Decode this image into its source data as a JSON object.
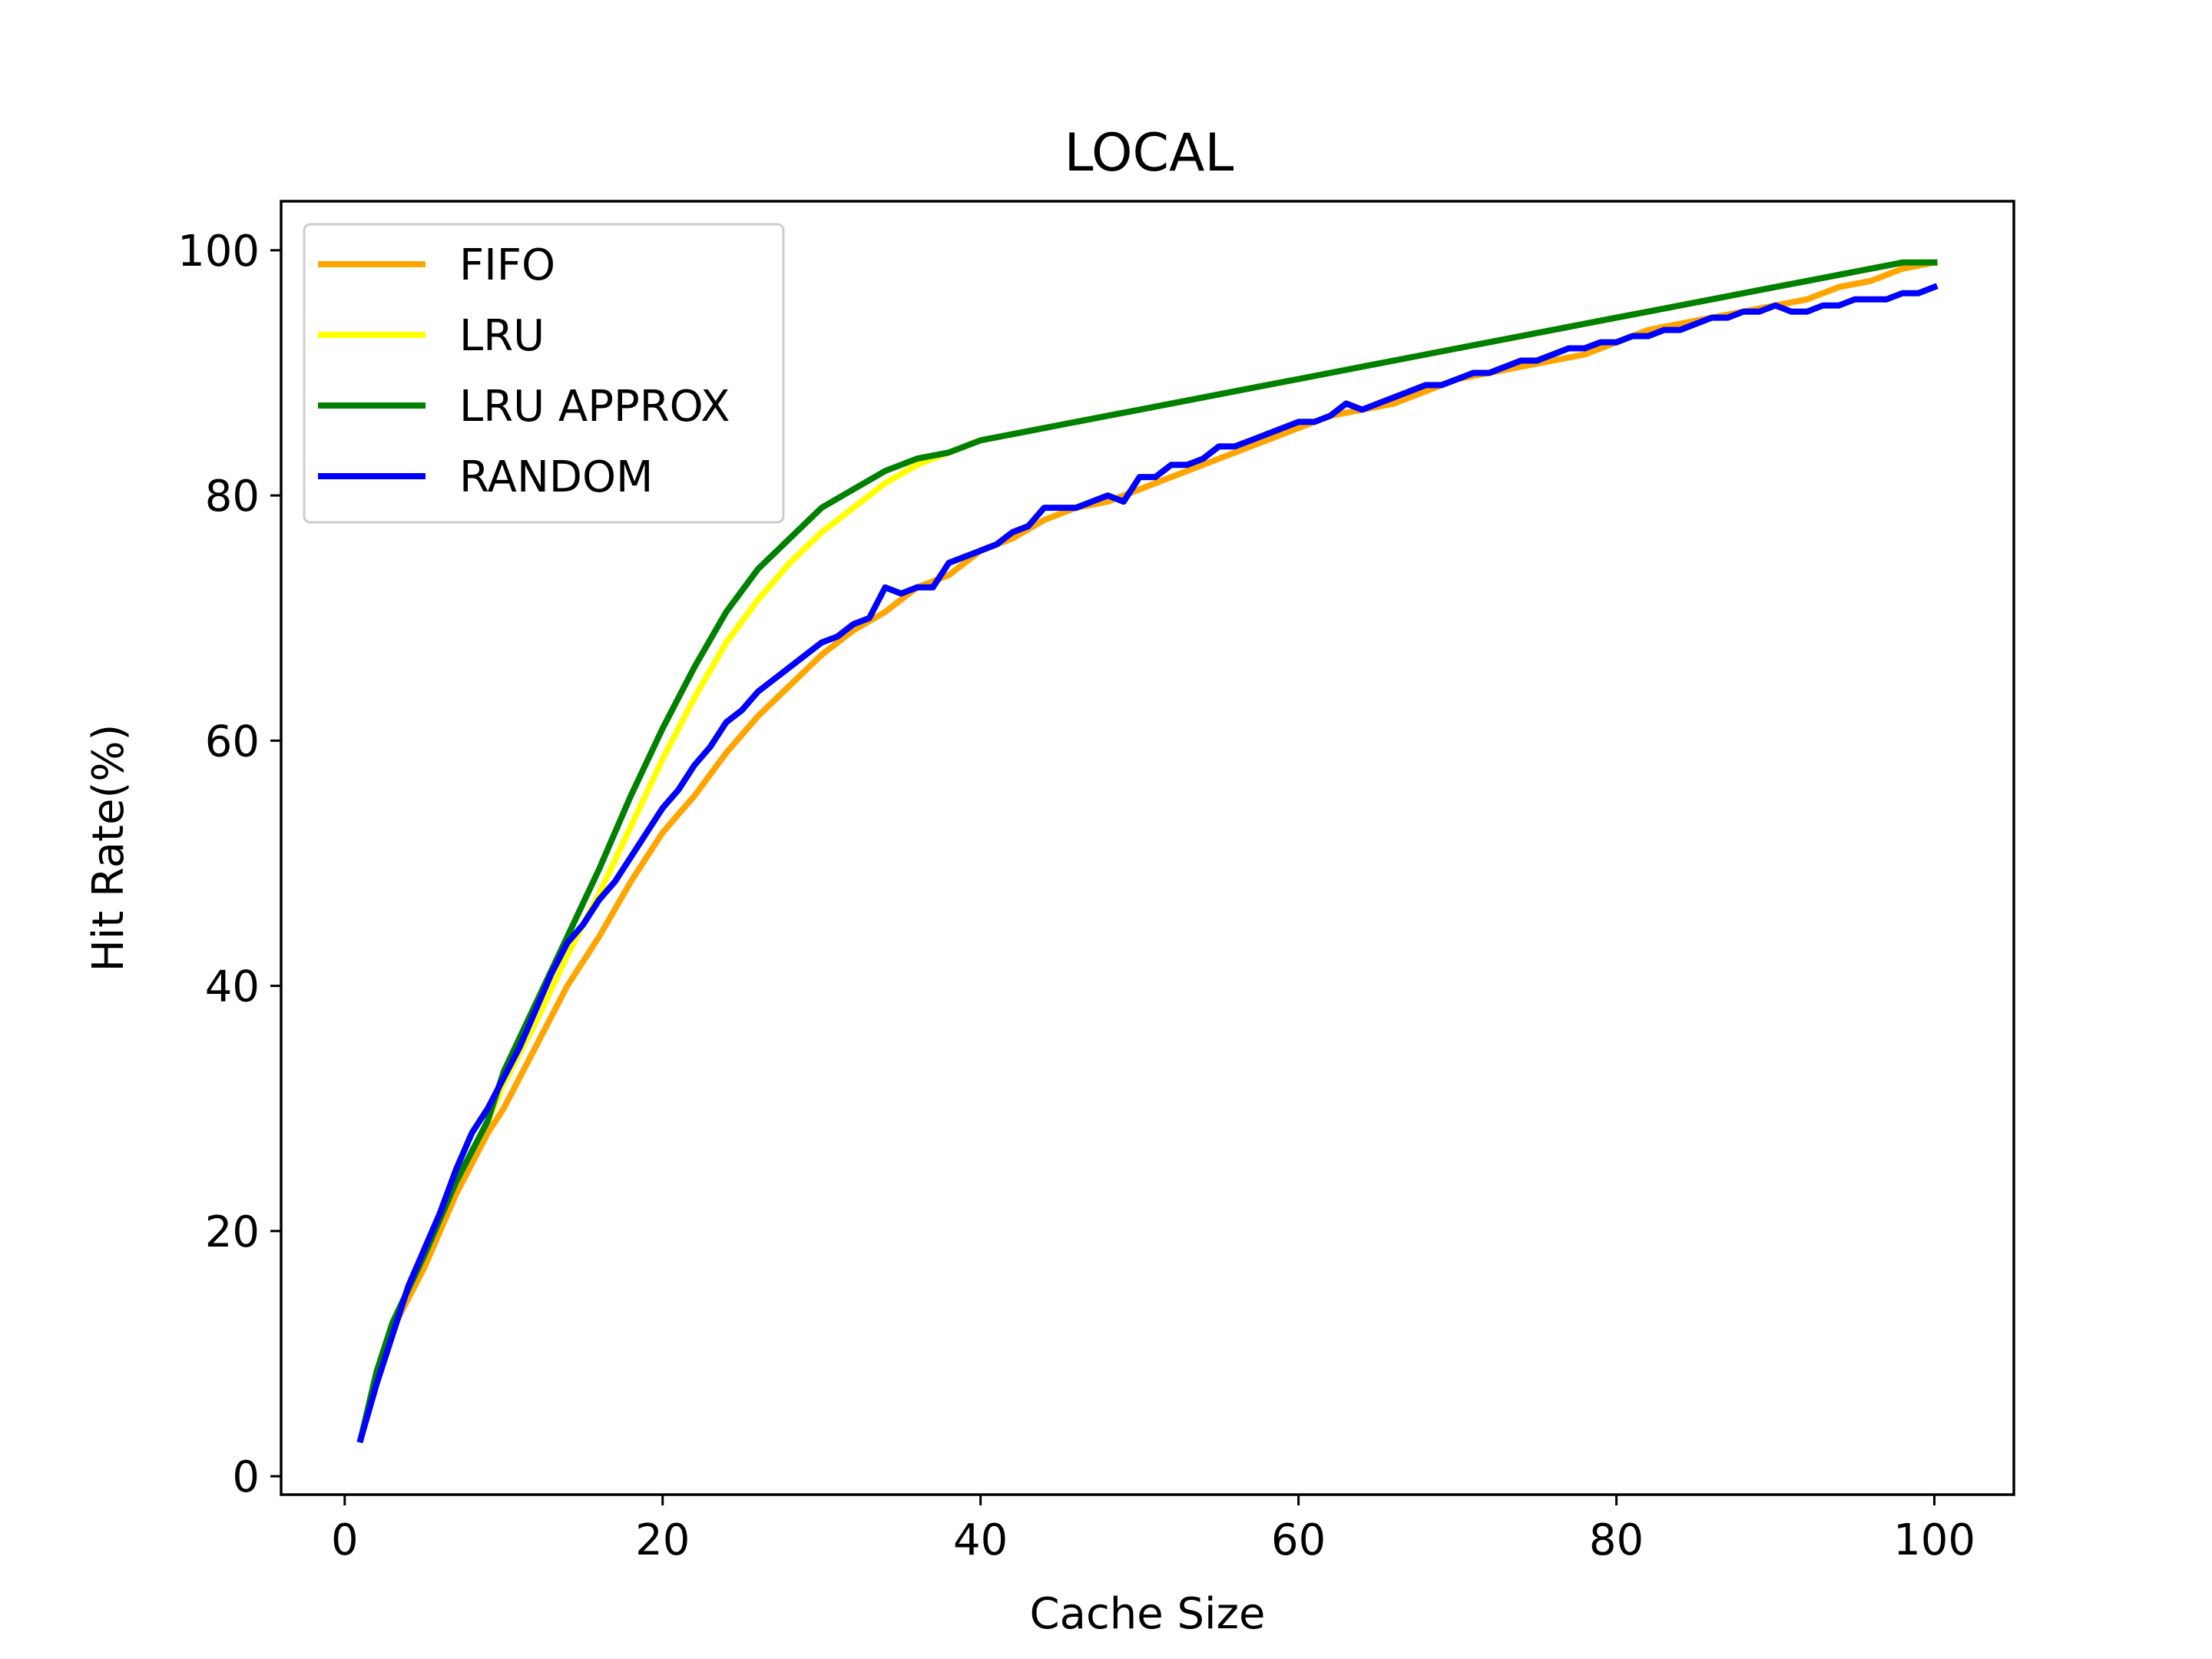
{
  "chart_data": {
    "type": "line",
    "title": "LOCAL",
    "xlabel": "Cache Size",
    "ylabel": "Hit Rate(%)",
    "xlim": [
      -4,
      105
    ],
    "ylim": [
      -1.5,
      104
    ],
    "xticks": [
      0,
      20,
      40,
      60,
      80,
      100
    ],
    "yticks": [
      0,
      20,
      40,
      60,
      80,
      100
    ],
    "grid": false,
    "legend_position": "upper-left",
    "series": [
      {
        "name": "FIFO",
        "color": "#ffa500",
        "points": [
          [
            1,
            3
          ],
          [
            2,
            8
          ],
          [
            3,
            12
          ],
          [
            5,
            17
          ],
          [
            7,
            23
          ],
          [
            9,
            28
          ],
          [
            10,
            30
          ],
          [
            12,
            35
          ],
          [
            14,
            40
          ],
          [
            16,
            44
          ],
          [
            18,
            48.5
          ],
          [
            20,
            52.5
          ],
          [
            22,
            55.5
          ],
          [
            24,
            59
          ],
          [
            26,
            62
          ],
          [
            28,
            64.5
          ],
          [
            30,
            67
          ],
          [
            32,
            69
          ],
          [
            34,
            70.5
          ],
          [
            36,
            72.5
          ],
          [
            38,
            73.5
          ],
          [
            40,
            75.5
          ],
          [
            42,
            76.5
          ],
          [
            44,
            78
          ],
          [
            46,
            79
          ],
          [
            48,
            79.5
          ],
          [
            50,
            80.5
          ],
          [
            52,
            81.5
          ],
          [
            54,
            82.5
          ],
          [
            56,
            83.5
          ],
          [
            58,
            84.5
          ],
          [
            60,
            85.5
          ],
          [
            62,
            86.5
          ],
          [
            64,
            87
          ],
          [
            66,
            87.5
          ],
          [
            68,
            88.5
          ],
          [
            70,
            89.5
          ],
          [
            72,
            90
          ],
          [
            74,
            90.5
          ],
          [
            76,
            91
          ],
          [
            78,
            91.5
          ],
          [
            80,
            92.5
          ],
          [
            82,
            93.5
          ],
          [
            84,
            94
          ],
          [
            86,
            94.5
          ],
          [
            88,
            95
          ],
          [
            90,
            95.5
          ],
          [
            92,
            96
          ],
          [
            94,
            97
          ],
          [
            96,
            97.5
          ],
          [
            98,
            98.5
          ],
          [
            100,
            99
          ]
        ]
      },
      {
        "name": "LRU",
        "color": "#ffff00",
        "points": [
          [
            1,
            3
          ],
          [
            2,
            8.5
          ],
          [
            3,
            12.5
          ],
          [
            5,
            18
          ],
          [
            7,
            24
          ],
          [
            9,
            29
          ],
          [
            10,
            32
          ],
          [
            12,
            37
          ],
          [
            14,
            42.5
          ],
          [
            16,
            47.5
          ],
          [
            18,
            53
          ],
          [
            20,
            58.5
          ],
          [
            22,
            63.5
          ],
          [
            24,
            68
          ],
          [
            26,
            71.5
          ],
          [
            28,
            74.5
          ],
          [
            30,
            77
          ],
          [
            32,
            79
          ],
          [
            34,
            81
          ],
          [
            36,
            82.5
          ],
          [
            38,
            83.5
          ],
          [
            40,
            84.5
          ],
          [
            42,
            85
          ],
          [
            44,
            85.5
          ],
          [
            46,
            86
          ],
          [
            48,
            86.5
          ],
          [
            50,
            87
          ],
          [
            52,
            87.5
          ],
          [
            54,
            88
          ],
          [
            56,
            88.5
          ],
          [
            58,
            89
          ],
          [
            60,
            89.5
          ],
          [
            62,
            90
          ],
          [
            64,
            90.5
          ],
          [
            66,
            91
          ],
          [
            68,
            91.5
          ],
          [
            70,
            92
          ],
          [
            72,
            92.5
          ],
          [
            74,
            93
          ],
          [
            76,
            93.5
          ],
          [
            78,
            94
          ],
          [
            80,
            94.5
          ],
          [
            82,
            95
          ],
          [
            84,
            95.5
          ],
          [
            86,
            96
          ],
          [
            88,
            96.5
          ],
          [
            90,
            97
          ],
          [
            92,
            97.5
          ],
          [
            94,
            98
          ],
          [
            96,
            98.5
          ],
          [
            98,
            99
          ],
          [
            100,
            99
          ]
        ]
      },
      {
        "name": "LRU APPROX",
        "color": "#008000",
        "points": [
          [
            1,
            3
          ],
          [
            2,
            8.5
          ],
          [
            3,
            12.5
          ],
          [
            5,
            18
          ],
          [
            7,
            24
          ],
          [
            9,
            29
          ],
          [
            10,
            33
          ],
          [
            12,
            38.5
          ],
          [
            14,
            44
          ],
          [
            16,
            49.5
          ],
          [
            18,
            55.5
          ],
          [
            20,
            61
          ],
          [
            22,
            66
          ],
          [
            24,
            70.5
          ],
          [
            26,
            74
          ],
          [
            28,
            76.5
          ],
          [
            30,
            79
          ],
          [
            32,
            80.5
          ],
          [
            34,
            82
          ],
          [
            36,
            83
          ],
          [
            38,
            83.5
          ],
          [
            40,
            84.5
          ],
          [
            42,
            85
          ],
          [
            44,
            85.5
          ],
          [
            46,
            86
          ],
          [
            48,
            86.5
          ],
          [
            50,
            87
          ],
          [
            52,
            87.5
          ],
          [
            54,
            88
          ],
          [
            56,
            88.5
          ],
          [
            58,
            89
          ],
          [
            60,
            89.5
          ],
          [
            62,
            90
          ],
          [
            64,
            90.5
          ],
          [
            66,
            91
          ],
          [
            68,
            91.5
          ],
          [
            70,
            92
          ],
          [
            72,
            92.5
          ],
          [
            74,
            93
          ],
          [
            76,
            93.5
          ],
          [
            78,
            94
          ],
          [
            80,
            94.5
          ],
          [
            82,
            95
          ],
          [
            84,
            95.5
          ],
          [
            86,
            96
          ],
          [
            88,
            96.5
          ],
          [
            90,
            97
          ],
          [
            92,
            97.5
          ],
          [
            94,
            98
          ],
          [
            96,
            98.5
          ],
          [
            98,
            99
          ],
          [
            100,
            99
          ]
        ]
      },
      {
        "name": "RANDOM",
        "color": "#0000ff",
        "points": [
          [
            1,
            3
          ],
          [
            2,
            7.5
          ],
          [
            3,
            11.5
          ],
          [
            4,
            15.5
          ],
          [
            5,
            18.5
          ],
          [
            6,
            21.5
          ],
          [
            7,
            25
          ],
          [
            8,
            28
          ],
          [
            9,
            30
          ],
          [
            10,
            32.5
          ],
          [
            11,
            35
          ],
          [
            12,
            38
          ],
          [
            13,
            41
          ],
          [
            14,
            43.5
          ],
          [
            15,
            45
          ],
          [
            16,
            47
          ],
          [
            17,
            48.5
          ],
          [
            18,
            50.5
          ],
          [
            19,
            52.5
          ],
          [
            20,
            54.5
          ],
          [
            21,
            56
          ],
          [
            22,
            58
          ],
          [
            23,
            59.5
          ],
          [
            24,
            61.5
          ],
          [
            25,
            62.5
          ],
          [
            26,
            64
          ],
          [
            27,
            65
          ],
          [
            28,
            66
          ],
          [
            29,
            67
          ],
          [
            30,
            68
          ],
          [
            31,
            68.5
          ],
          [
            32,
            69.5
          ],
          [
            33,
            70
          ],
          [
            34,
            72.5
          ],
          [
            35,
            72
          ],
          [
            36,
            72.5
          ],
          [
            37,
            72.5
          ],
          [
            38,
            74.5
          ],
          [
            39,
            75
          ],
          [
            40,
            75.5
          ],
          [
            41,
            76
          ],
          [
            42,
            77
          ],
          [
            43,
            77.5
          ],
          [
            44,
            79
          ],
          [
            45,
            79
          ],
          [
            46,
            79
          ],
          [
            47,
            79.5
          ],
          [
            48,
            80
          ],
          [
            49,
            79.5
          ],
          [
            50,
            81.5
          ],
          [
            51,
            81.5
          ],
          [
            52,
            82.5
          ],
          [
            53,
            82.5
          ],
          [
            54,
            83
          ],
          [
            55,
            84
          ],
          [
            56,
            84
          ],
          [
            57,
            84.5
          ],
          [
            58,
            85
          ],
          [
            59,
            85.5
          ],
          [
            60,
            86
          ],
          [
            61,
            86
          ],
          [
            62,
            86.5
          ],
          [
            63,
            87.5
          ],
          [
            64,
            87
          ],
          [
            65,
            87.5
          ],
          [
            66,
            88
          ],
          [
            67,
            88.5
          ],
          [
            68,
            89
          ],
          [
            69,
            89
          ],
          [
            70,
            89.5
          ],
          [
            71,
            90
          ],
          [
            72,
            90
          ],
          [
            73,
            90.5
          ],
          [
            74,
            91
          ],
          [
            75,
            91
          ],
          [
            76,
            91.5
          ],
          [
            77,
            92
          ],
          [
            78,
            92
          ],
          [
            79,
            92.5
          ],
          [
            80,
            92.5
          ],
          [
            81,
            93
          ],
          [
            82,
            93
          ],
          [
            83,
            93.5
          ],
          [
            84,
            93.5
          ],
          [
            85,
            94
          ],
          [
            86,
            94.5
          ],
          [
            87,
            94.5
          ],
          [
            88,
            95
          ],
          [
            89,
            95
          ],
          [
            90,
            95.5
          ],
          [
            91,
            95
          ],
          [
            92,
            95
          ],
          [
            93,
            95.5
          ],
          [
            94,
            95.5
          ],
          [
            95,
            96
          ],
          [
            96,
            96
          ],
          [
            97,
            96
          ],
          [
            98,
            96.5
          ],
          [
            99,
            96.5
          ],
          [
            100,
            97
          ]
        ]
      }
    ]
  }
}
